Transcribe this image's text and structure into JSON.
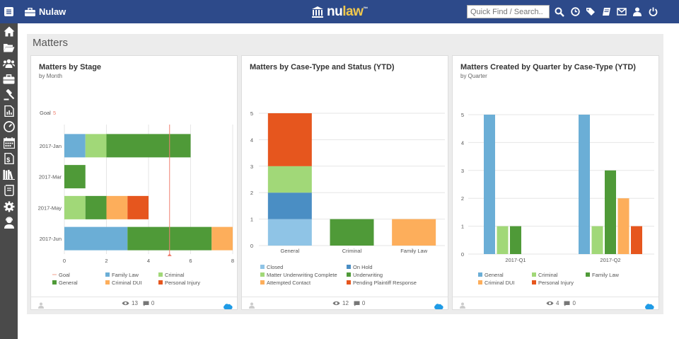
{
  "header": {
    "app_name": "Nulaw",
    "logo_text_1": "nu",
    "logo_text_2": "law",
    "logo_tm": "™",
    "search_placeholder": "Quick Find / Search.."
  },
  "panel": {
    "title": "Matters"
  },
  "cards": [
    {
      "title": "Matters by Stage",
      "subtitle": "by Month",
      "goal_label": "Goal",
      "goal_value": "5",
      "views": "13",
      "comments": "0"
    },
    {
      "title": "Matters by Case-Type and Status (YTD)",
      "subtitle": "",
      "views": "12",
      "comments": "0"
    },
    {
      "title": "Matters Created by Quarter by Case-Type (YTD)",
      "subtitle": "by Quarter",
      "views": "4",
      "comments": "0"
    }
  ],
  "chart_data": [
    {
      "type": "bar",
      "orientation": "horizontal",
      "stacked": true,
      "title": "Matters by Stage",
      "subtitle": "by Month",
      "categories": [
        "2017-Jan",
        "2017-Mar",
        "2017-May",
        "2017-Jun"
      ],
      "series": [
        {
          "name": "Family Law",
          "color": "#6baed6",
          "values": [
            1,
            0,
            0,
            3
          ]
        },
        {
          "name": "Criminal",
          "color": "#a1d878",
          "values": [
            1,
            0,
            1,
            0
          ]
        },
        {
          "name": "General",
          "color": "#4f9a38",
          "values": [
            4,
            1,
            1,
            4
          ]
        },
        {
          "name": "Criminal DUI",
          "color": "#fdae5b",
          "values": [
            0,
            0,
            1,
            1
          ]
        },
        {
          "name": "Personal Injury",
          "color": "#e6561e",
          "values": [
            0,
            0,
            1,
            0
          ]
        }
      ],
      "goal": 5,
      "goal_color": "#f08070",
      "xlim": [
        0,
        8
      ],
      "xticks": [
        "0",
        "2",
        "4",
        "6",
        "8"
      ],
      "legend": [
        {
          "name": "Goal",
          "color": "#f3b0a0",
          "kind": "line"
        },
        {
          "name": "Family Law",
          "color": "#6baed6"
        },
        {
          "name": "Criminal",
          "color": "#a1d878"
        },
        {
          "name": "General",
          "color": "#4f9a38"
        },
        {
          "name": "Criminal DUI",
          "color": "#fdae5b"
        },
        {
          "name": "Personal Injury",
          "color": "#e6561e"
        }
      ]
    },
    {
      "type": "bar",
      "stacked": true,
      "title": "Matters by Case-Type and Status (YTD)",
      "categories": [
        "General",
        "Criminal",
        "Family Law"
      ],
      "series": [
        {
          "name": "Closed",
          "color": "#8fc4e6",
          "values": [
            1,
            0,
            0
          ]
        },
        {
          "name": "Matter Underwriting Complete",
          "color": "#a1d878",
          "values": [
            1,
            0,
            0
          ]
        },
        {
          "name": "Attempted Contact",
          "color": "#fdae5b",
          "values": [
            0,
            0,
            1
          ]
        },
        {
          "name": "On Hold",
          "color": "#4a8ec4",
          "values": [
            1,
            0,
            0
          ]
        },
        {
          "name": "Underwriting",
          "color": "#4f9a38",
          "values": [
            0,
            1,
            0
          ]
        },
        {
          "name": "Pending Plaintiff Response",
          "color": "#e6561e",
          "values": [
            2,
            0,
            0
          ]
        }
      ],
      "stack_order": [
        "Closed",
        "On Hold",
        "Matter Underwriting Complete",
        "Pending Plaintiff Response",
        "Underwriting",
        "Attempted Contact"
      ],
      "ylim": [
        0,
        5
      ],
      "yticks": [
        "0",
        "1",
        "2",
        "3",
        "4",
        "5"
      ],
      "legend": [
        {
          "name": "Closed",
          "color": "#8fc4e6"
        },
        {
          "name": "On Hold",
          "color": "#4a8ec4"
        },
        {
          "name": "Matter Underwriting Complete",
          "color": "#a1d878"
        },
        {
          "name": "Underwriting",
          "color": "#4f9a38"
        },
        {
          "name": "Attempted Contact",
          "color": "#fdae5b"
        },
        {
          "name": "Pending Plaintiff Response",
          "color": "#e6561e"
        }
      ]
    },
    {
      "type": "bar",
      "grouped": true,
      "title": "Matters Created by Quarter by Case-Type (YTD)",
      "subtitle": "by Quarter",
      "categories": [
        "2017-Q1",
        "2017-Q2"
      ],
      "series": [
        {
          "name": "General",
          "color": "#6baed6",
          "values": [
            5,
            5
          ]
        },
        {
          "name": "Criminal",
          "color": "#a1d878",
          "values": [
            1,
            1
          ]
        },
        {
          "name": "Family Law",
          "color": "#4f9a38",
          "values": [
            1,
            3
          ]
        },
        {
          "name": "Criminal DUI",
          "color": "#fdae5b",
          "values": [
            0,
            2
          ]
        },
        {
          "name": "Personal Injury",
          "color": "#e6561e",
          "values": [
            0,
            1
          ]
        }
      ],
      "ylim": [
        0,
        5
      ],
      "yticks": [
        "0",
        "1",
        "2",
        "3",
        "4",
        "5"
      ],
      "legend": [
        {
          "name": "General",
          "color": "#6baed6"
        },
        {
          "name": "Criminal",
          "color": "#a1d878"
        },
        {
          "name": "Family Law",
          "color": "#4f9a38"
        },
        {
          "name": "Criminal DUI",
          "color": "#fdae5b"
        },
        {
          "name": "Personal Injury",
          "color": "#e6561e"
        }
      ]
    }
  ]
}
